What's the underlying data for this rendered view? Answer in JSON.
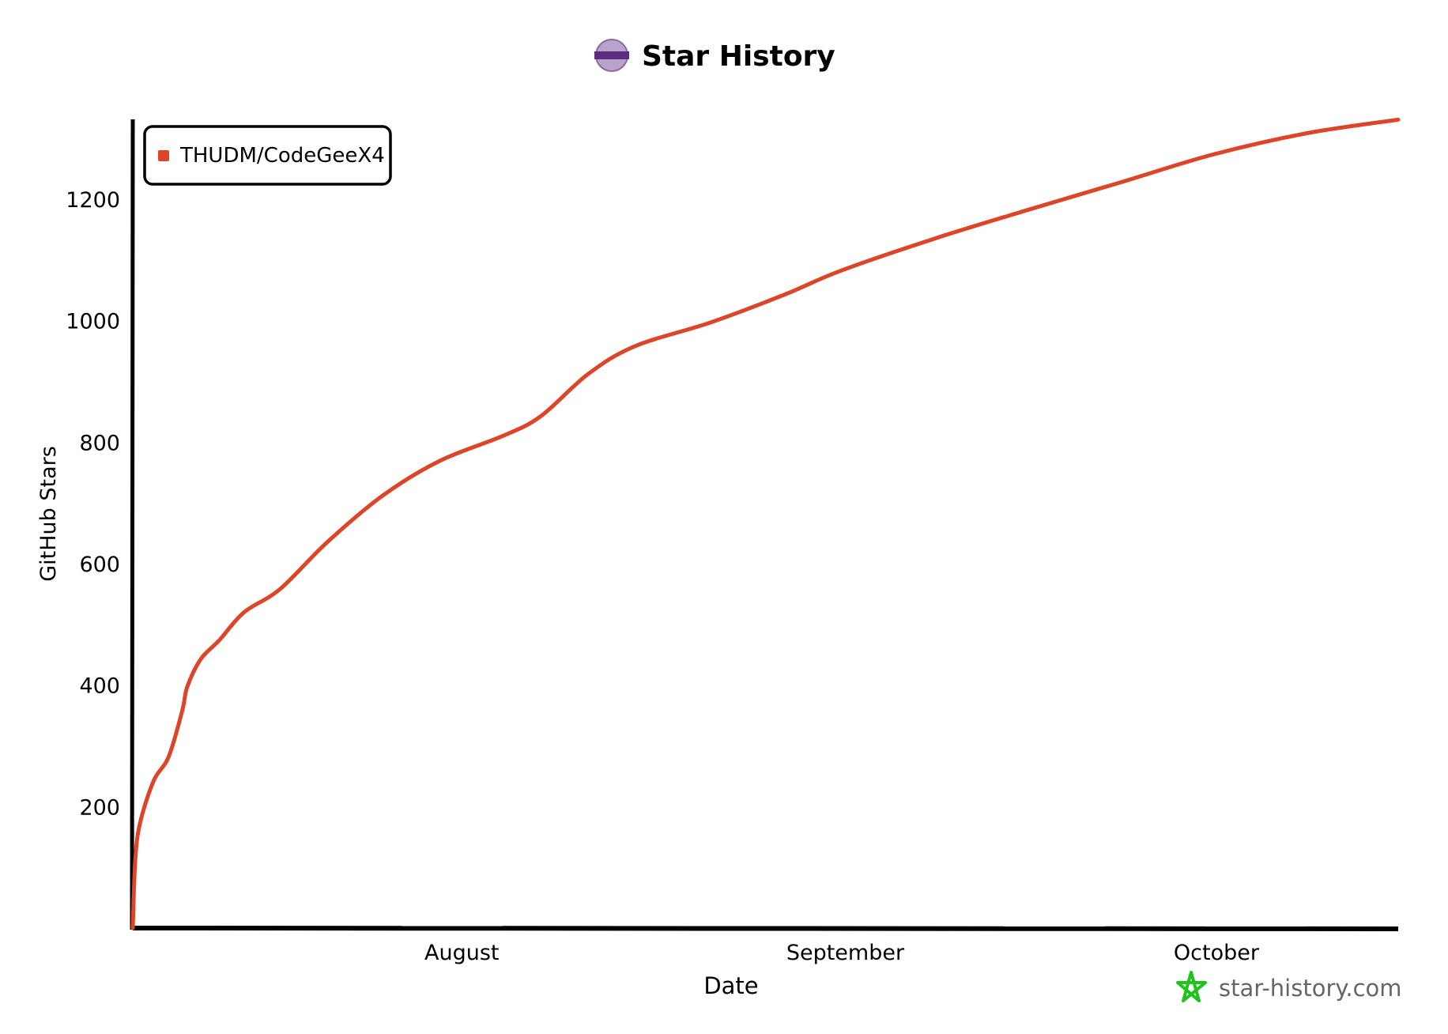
{
  "header": {
    "title": "Star History",
    "logo_icon": "reg-badge-icon"
  },
  "watermark": {
    "text": "star-history.com",
    "icon": "green-star-icon",
    "color": "#1ec31e"
  },
  "chart_data": {
    "type": "line",
    "title": "Star History",
    "xlabel": "Date",
    "ylabel": "GitHub Stars",
    "x_unit": "days since July 5",
    "xlim": [
      0,
      102.3
    ],
    "ylim": [
      0,
      1335
    ],
    "x_ticks": [
      {
        "label": "August",
        "value": 26.6
      },
      {
        "label": "September",
        "value": 57.6
      },
      {
        "label": "October",
        "value": 87.6
      }
    ],
    "y_ticks": [
      200,
      400,
      600,
      800,
      1000,
      1200
    ],
    "grid": false,
    "legend": {
      "position": "top-left",
      "entries": [
        "THUDM/CodeGeeX4"
      ]
    },
    "series": [
      {
        "name": "THUDM/CodeGeeX4",
        "color": "#dd4528",
        "x": [
          0,
          0.2,
          0.6,
          1.7,
          2.9,
          4.0,
          4.4,
          5.5,
          7.0,
          9.0,
          11.9,
          15.7,
          20.2,
          24.8,
          30.0,
          33.0,
          36.8,
          40.6,
          46.7,
          52.7,
          57.2,
          64.8,
          72.3,
          79.9,
          87.4,
          95.0,
          102.3
        ],
        "y": [
          0,
          112,
          174,
          243,
          282,
          358,
          397,
          443,
          474,
          520,
          558,
          635,
          712,
          769,
          811,
          843,
          912,
          958,
          997,
          1043,
          1082,
          1135,
          1182,
          1228,
          1274,
          1309,
          1331
        ]
      }
    ]
  }
}
